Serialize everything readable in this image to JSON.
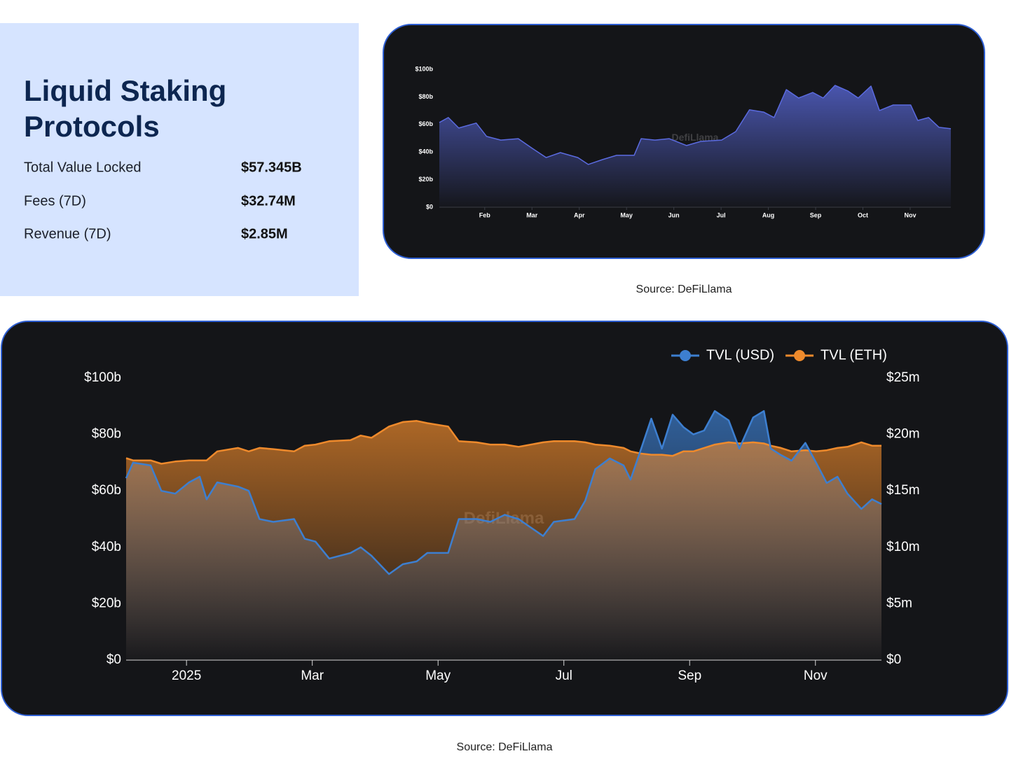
{
  "panel": {
    "title": "Liquid Staking Protocols",
    "stats": [
      {
        "label": "Total Value Locked",
        "value": "$57.345B"
      },
      {
        "label": "Fees (7D)",
        "value": "$32.74M"
      },
      {
        "label": "Revenue (7D)",
        "value": "$2.85M"
      }
    ]
  },
  "chart_data": [
    {
      "type": "area",
      "watermark": "DefiLlama",
      "source": "Source: DeFiLlama",
      "color": "#5b6be0",
      "grid": false,
      "x": [
        1.04,
        1.23,
        1.45,
        1.82,
        2.04,
        2.34,
        2.71,
        3.01,
        3.3,
        3.6,
        3.97,
        4.19,
        4.49,
        4.79,
        5.16,
        5.31,
        5.6,
        5.9,
        6.27,
        6.57,
        7.01,
        7.31,
        7.6,
        7.9,
        8.12,
        8.38,
        8.64,
        8.94,
        9.16,
        9.41,
        9.68,
        9.9,
        10.17,
        10.35,
        10.64,
        11.01,
        11.16,
        11.39,
        11.61,
        11.86
      ],
      "values": [
        61.4,
        65,
        57.4,
        61,
        51.3,
        48.7,
        49.7,
        42.6,
        36,
        39.6,
        36,
        31,
        34.5,
        37.6,
        37.6,
        49.7,
        48.7,
        49.7,
        44.7,
        47.7,
        48.7,
        54.8,
        70.6,
        69,
        65,
        85.3,
        79.2,
        83.2,
        79.2,
        88.3,
        84.3,
        79.2,
        87.8,
        70.1,
        74.1,
        74.1,
        62.9,
        65,
        57.9,
        56.9
      ],
      "xlim": [
        1.04,
        11.86
      ],
      "xticks": [
        {
          "value": 2,
          "label": "Feb"
        },
        {
          "value": 3,
          "label": "Mar"
        },
        {
          "value": 4,
          "label": "Apr"
        },
        {
          "value": 5,
          "label": "May"
        },
        {
          "value": 6,
          "label": "Jun"
        },
        {
          "value": 7,
          "label": "Jul"
        },
        {
          "value": 8,
          "label": "Aug"
        },
        {
          "value": 9,
          "label": "Sep"
        },
        {
          "value": 10,
          "label": "Oct"
        },
        {
          "value": 11,
          "label": "Nov"
        }
      ],
      "ylim": [
        0,
        100
      ],
      "yticks": [
        {
          "value": 0,
          "label": "$0"
        },
        {
          "value": 20,
          "label": "$20b"
        },
        {
          "value": 40,
          "label": "$40b"
        },
        {
          "value": 60,
          "label": "$60b"
        },
        {
          "value": 80,
          "label": "$80b"
        },
        {
          "value": 100,
          "label": "$100b"
        }
      ]
    },
    {
      "type": "area",
      "watermark": "DefiLlama",
      "source": "Source: DeFiLlama",
      "grid": false,
      "legend": "top-right",
      "x": [
        0.04,
        0.15,
        0.43,
        0.6,
        0.82,
        1.04,
        1.21,
        1.32,
        1.49,
        1.82,
        1.99,
        2.16,
        2.38,
        2.71,
        2.88,
        3.05,
        3.27,
        3.61,
        3.77,
        3.94,
        4.22,
        4.44,
        4.66,
        4.83,
        5.16,
        5.33,
        5.61,
        5.83,
        6.06,
        6.28,
        6.67,
        6.84,
        7.17,
        7.34,
        7.5,
        7.73,
        7.95,
        8.06,
        8.23,
        8.39,
        8.56,
        8.73,
        8.9,
        9.06,
        9.23,
        9.4,
        9.62,
        9.79,
        10.01,
        10.18,
        10.29,
        10.45,
        10.62,
        10.84,
        11.01,
        11.18,
        11.35,
        11.51,
        11.73,
        11.9,
        12.05
      ],
      "series": [
        {
          "name": "TVL (USD)",
          "color": "#3d7fd0",
          "values": [
            64.5,
            70,
            69,
            60,
            59,
            63,
            65,
            57,
            63,
            61.5,
            60,
            50,
            49,
            50,
            43,
            42,
            36,
            38,
            40,
            37,
            30.5,
            34,
            35,
            38,
            38,
            50,
            50,
            49,
            51.5,
            50,
            44,
            49,
            50,
            56.5,
            67.7,
            71.5,
            69,
            64,
            75,
            85.6,
            75,
            87,
            82.6,
            80,
            81.4,
            88.3,
            85,
            75,
            86,
            88.3,
            75,
            72.7,
            70.7,
            77,
            70,
            62.8,
            65,
            59,
            53.6,
            57,
            55.3
          ]
        },
        {
          "name": "TVL (ETH)",
          "color": "#ee8a2c",
          "axis": "y2",
          "values": [
            17.9,
            17.7,
            17.7,
            17.4,
            17.6,
            17.7,
            17.7,
            17.7,
            18.5,
            18.8,
            18.5,
            18.8,
            18.7,
            18.5,
            19.0,
            19.1,
            19.4,
            19.5,
            19.9,
            19.7,
            20.7,
            21.1,
            21.2,
            21.0,
            20.7,
            19.4,
            19.3,
            19.1,
            19.1,
            18.9,
            19.3,
            19.4,
            19.4,
            19.3,
            19.1,
            19.0,
            18.8,
            18.5,
            18.3,
            18.2,
            18.2,
            18.1,
            18.5,
            18.5,
            18.8,
            19.1,
            19.3,
            19.2,
            19.3,
            19.2,
            19.0,
            18.8,
            18.5,
            18.6,
            18.5,
            18.6,
            18.8,
            18.9,
            19.3,
            19.0,
            19.0
          ]
        }
      ],
      "xlim": [
        0.04,
        12.05
      ],
      "xticks": [
        {
          "value": 1,
          "label": "2025"
        },
        {
          "value": 3,
          "label": "Mar"
        },
        {
          "value": 5,
          "label": "May"
        },
        {
          "value": 7,
          "label": "Jul"
        },
        {
          "value": 9,
          "label": "Sep"
        },
        {
          "value": 11,
          "label": "Nov"
        }
      ],
      "ylim": [
        0,
        100
      ],
      "yticks": [
        {
          "value": 0,
          "label": "$0"
        },
        {
          "value": 20,
          "label": "$20b"
        },
        {
          "value": 40,
          "label": "$40b"
        },
        {
          "value": 60,
          "label": "$60b"
        },
        {
          "value": 80,
          "label": "$80b"
        },
        {
          "value": 100,
          "label": "$100b"
        }
      ],
      "y2lim": [
        0,
        25
      ],
      "y2ticks": [
        {
          "value": 0,
          "label": "$0"
        },
        {
          "value": 5,
          "label": "$5m"
        },
        {
          "value": 10,
          "label": "$10m"
        },
        {
          "value": 15,
          "label": "$15m"
        },
        {
          "value": 20,
          "label": "$20m"
        },
        {
          "value": 25,
          "label": "$25m"
        }
      ]
    }
  ]
}
